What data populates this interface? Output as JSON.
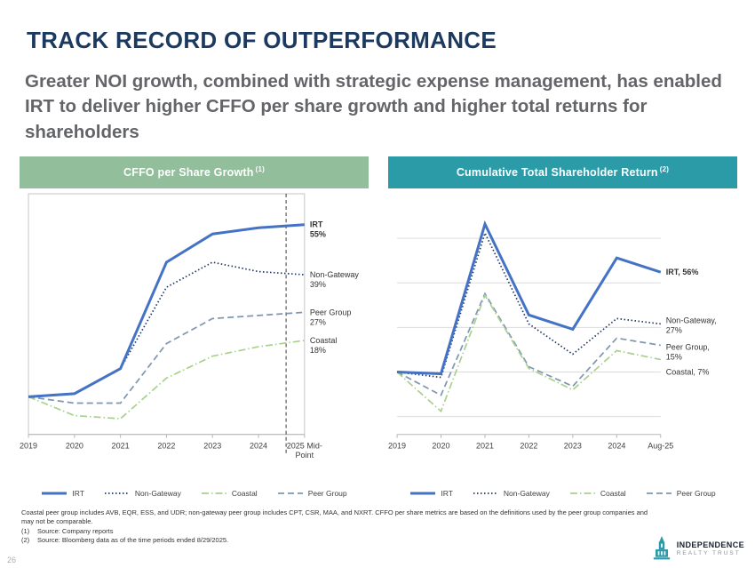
{
  "slide": {
    "title": "TRACK RECORD OF OUTPERFORMANCE",
    "subtitle": "Greater NOI growth, combined with strategic expense management, has enabled IRT to deliver higher CFFO per share growth and higher total returns for shareholders",
    "page_number": "26"
  },
  "colors": {
    "title_navy": "#1C3A60",
    "subtitle_gray": "#646569",
    "header_green": "#93BE9C",
    "header_teal": "#2B9BA8",
    "irt": "#4472C4",
    "non_gateway": "#1F3864",
    "coastal": "#A9D18E",
    "peer_group": "#7F96B2"
  },
  "chart_data": [
    {
      "type": "line",
      "title": "CFFO per Share Growth",
      "title_sup": "(1)",
      "categories": [
        "2019",
        "2020",
        "2021",
        "2022",
        "2023",
        "2024",
        "2025 Mid-\nPoint"
      ],
      "ylim": [
        -12,
        62
      ],
      "label_width": 72,
      "border": true,
      "grid": false,
      "legend_position": "bottom",
      "vline": {
        "between": [
          5,
          6
        ],
        "frac": 0.6
      },
      "series": [
        {
          "name": "IRT",
          "style": "solid",
          "color_key": "irt",
          "label_bold": true,
          "end_label": [
            "IRT",
            "55%"
          ],
          "values": [
            0,
            1,
            9,
            43,
            52,
            54,
            55
          ]
        },
        {
          "name": "Non-Gateway",
          "style": "dotted",
          "color_key": "non_gateway",
          "end_label": [
            "Non-Gateway",
            "39%"
          ],
          "values": [
            0,
            1,
            9,
            35,
            43,
            40,
            39
          ]
        },
        {
          "name": "Coastal",
          "style": "dashdot",
          "color_key": "coastal",
          "end_label": [
            "Coastal",
            "18%"
          ],
          "values": [
            0,
            -6,
            -7,
            6,
            13,
            16,
            18
          ]
        },
        {
          "name": "Peer Group",
          "style": "dashed",
          "color_key": "peer_group",
          "end_label": [
            "Peer Group",
            "27%"
          ],
          "values": [
            0,
            -2,
            -2,
            17,
            25,
            26,
            27
          ]
        }
      ]
    },
    {
      "type": "line",
      "title": "Cumulative Total Shareholder Return",
      "title_sup": "(2)",
      "categories": [
        "2019",
        "2020",
        "2021",
        "2022",
        "2023",
        "2024",
        "Aug-25"
      ],
      "ylim": [
        -35,
        95
      ],
      "label_width": 86,
      "border": false,
      "grid": true,
      "grid_values": [
        -25,
        0,
        25,
        50,
        75
      ],
      "legend_position": "bottom",
      "series": [
        {
          "name": "IRT",
          "style": "solid",
          "color_key": "irt",
          "label_bold": true,
          "end_label": [
            "IRT, 56%"
          ],
          "values": [
            0,
            -1,
            83,
            32,
            24,
            64,
            56
          ]
        },
        {
          "name": "Non-Gateway",
          "style": "dotted",
          "color_key": "non_gateway",
          "label_dy": -4,
          "end_label": [
            "Non-Gateway,",
            "27%"
          ],
          "values": [
            0,
            -3,
            78,
            27,
            10,
            30,
            27
          ]
        },
        {
          "name": "Coastal",
          "style": "dashdot",
          "color_key": "coastal",
          "label_dy": 14,
          "end_label": [
            "Coastal, 7%"
          ],
          "values": [
            0,
            -22,
            43,
            2,
            -10,
            12,
            7
          ]
        },
        {
          "name": "Peer Group",
          "style": "dashed",
          "color_key": "peer_group",
          "label_dy": 2,
          "end_label": [
            "Peer Group,",
            "15%"
          ],
          "values": [
            0,
            -13,
            44,
            3,
            -8,
            19,
            15
          ]
        }
      ]
    }
  ],
  "footnotes": {
    "main": "Coastal peer group includes AVB, EQR, ESS, and UDR; non-gateway peer group includes CPT, CSR, MAA, and NXRT. CFFO per share metrics are based on the definitions used by the peer group companies and may not be comparable.",
    "notes": [
      {
        "num": "(1)",
        "text": "Source: Company reports"
      },
      {
        "num": "(2)",
        "text": "Source: Bloomberg data as of the time periods ended 8/29/2025."
      }
    ]
  },
  "logo": {
    "line1": "INDEPENDENCE",
    "line2": "REALTY TRUST"
  }
}
